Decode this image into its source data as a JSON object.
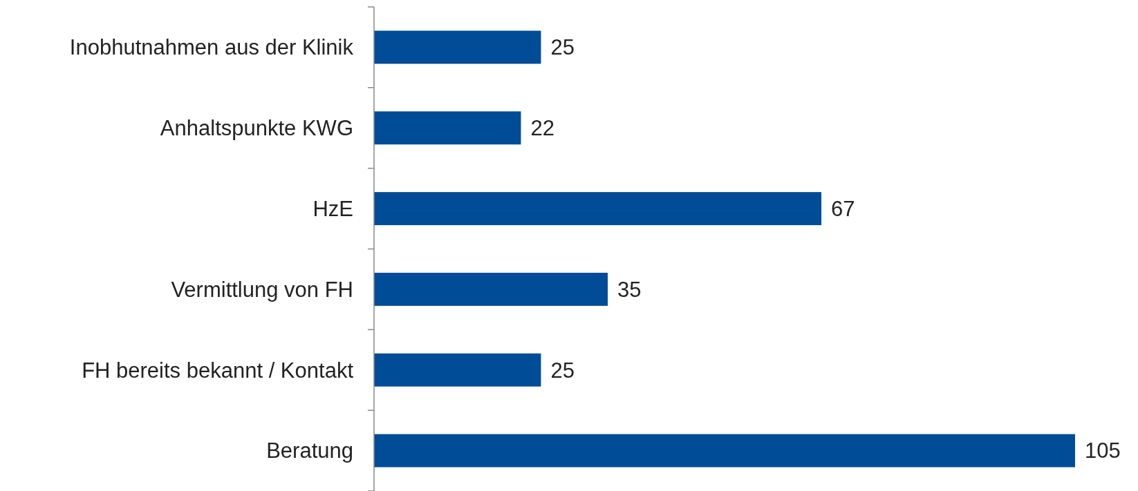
{
  "chart_data": {
    "type": "bar",
    "orientation": "horizontal",
    "categories": [
      "Inobhutnahmen aus der Klinik",
      "Anhaltspunkte KWG",
      "HzE",
      "Vermittlung von FH",
      "FH bereits bekannt / Kontakt",
      "Beratung"
    ],
    "values": [
      25,
      22,
      67,
      35,
      25,
      105
    ],
    "color": "#004c97",
    "xlim": [
      0,
      105
    ],
    "tick_labels": "y",
    "data_labels": true
  }
}
